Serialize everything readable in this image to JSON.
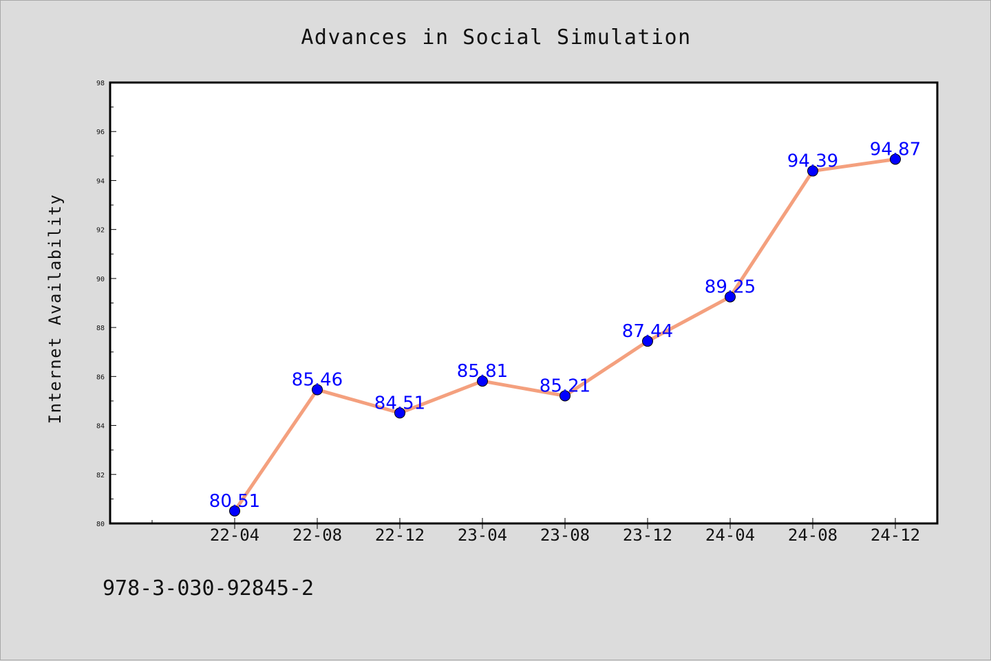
{
  "chart_data": {
    "type": "line",
    "title": "Advances in Social Simulation",
    "xlabel": "",
    "ylabel": "Internet Availability",
    "categories": [
      "22-04",
      "22-08",
      "22-12",
      "23-04",
      "23-08",
      "23-12",
      "24-04",
      "24-08",
      "24-12"
    ],
    "series": [
      {
        "values": [
          80.51,
          85.46,
          84.51,
          85.81,
          85.21,
          87.44,
          89.25,
          94.39,
          94.87
        ],
        "labels": [
          "80.51",
          "85.46",
          "84.51",
          "85.81",
          "85.21",
          "87.44",
          "89.25",
          "94.39",
          "94.87"
        ],
        "line_color": "#f4a07e",
        "marker_color": "#0000ff",
        "label_color": "#0000ff"
      }
    ],
    "ylim": [
      80,
      98
    ],
    "yticks": [
      "80",
      "82",
      "84",
      "86",
      "88",
      "90",
      "92",
      "94",
      "96",
      "98"
    ],
    "grid": false,
    "legend": "none",
    "footer": "978-3-030-92845-2",
    "colors": {
      "background": "#dcdcdc",
      "plot_background": "#ffffff",
      "axes": "#000000"
    }
  }
}
